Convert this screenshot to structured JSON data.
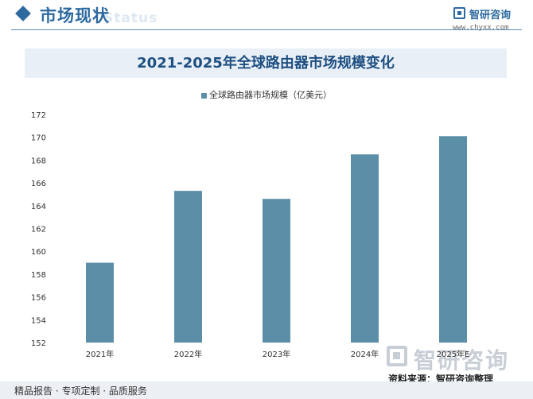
{
  "header": {
    "title": "市场现状",
    "ghost_text": "Status",
    "brand": "智研咨询",
    "url": "www.chyxx.com"
  },
  "watermark": {
    "text": "智研咨询"
  },
  "source_text": "资料来源：智研咨询整理",
  "footer": {
    "left_text": "精品报告 · 专项定制 · 品质服务"
  },
  "colors": {
    "accent": "#2c6aa0",
    "bar": "#5b8fa8",
    "title_bar_bg": "#e8eff6"
  },
  "chart_data": {
    "type": "bar",
    "title": "2021-2025年全球路由器市场规模变化",
    "categories": [
      "2021年",
      "2022年",
      "2023年",
      "2024年",
      "2025年E"
    ],
    "series": [
      {
        "name": "全球路由器市场规模（亿美元）",
        "values": [
          159.0,
          165.3,
          164.6,
          168.5,
          170.1
        ]
      }
    ],
    "ylim": [
      152,
      172
    ],
    "yticks": [
      152,
      154,
      156,
      158,
      160,
      162,
      164,
      166,
      168,
      170,
      172
    ],
    "grid": false,
    "legend": "top-center"
  }
}
